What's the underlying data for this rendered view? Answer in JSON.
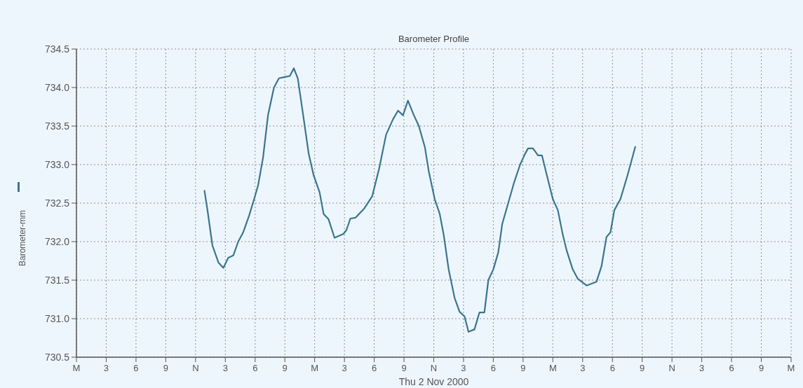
{
  "chart_data": {
    "type": "line",
    "title": "Barometer Profile",
    "xlabel": "Thu 2 Nov 2000",
    "ylabel": "Barometer-mm",
    "xlim": [
      "2000-11-01T00:00",
      "2000-11-04T00:00"
    ],
    "xticks": [
      {
        "value": "2000-11-01T00:00",
        "label": "M"
      },
      {
        "value": "2000-11-01T03:00",
        "label": "3"
      },
      {
        "value": "2000-11-01T06:00",
        "label": "6"
      },
      {
        "value": "2000-11-01T09:00",
        "label": "9"
      },
      {
        "value": "2000-11-01T12:00",
        "label": "N"
      },
      {
        "value": "2000-11-01T15:00",
        "label": "3"
      },
      {
        "value": "2000-11-01T18:00",
        "label": "6"
      },
      {
        "value": "2000-11-01T21:00",
        "label": "9"
      },
      {
        "value": "2000-11-02T00:00",
        "label": "M"
      },
      {
        "value": "2000-11-02T03:00",
        "label": "3"
      },
      {
        "value": "2000-11-02T06:00",
        "label": "6"
      },
      {
        "value": "2000-11-02T09:00",
        "label": "9"
      },
      {
        "value": "2000-11-02T12:00",
        "label": "N"
      },
      {
        "value": "2000-11-02T15:00",
        "label": "3"
      },
      {
        "value": "2000-11-02T18:00",
        "label": "6"
      },
      {
        "value": "2000-11-02T21:00",
        "label": "9"
      },
      {
        "value": "2000-11-03T00:00",
        "label": "M"
      },
      {
        "value": "2000-11-03T03:00",
        "label": "3"
      },
      {
        "value": "2000-11-03T06:00",
        "label": "6"
      },
      {
        "value": "2000-11-03T09:00",
        "label": "9"
      },
      {
        "value": "2000-11-03T12:00",
        "label": "N"
      },
      {
        "value": "2000-11-03T15:00",
        "label": "3"
      },
      {
        "value": "2000-11-03T18:00",
        "label": "6"
      },
      {
        "value": "2000-11-03T21:00",
        "label": "9"
      },
      {
        "value": "2000-11-04T00:00",
        "label": "M"
      }
    ],
    "ylim": [
      730.5,
      734.5
    ],
    "yticks": [
      {
        "value": 730.5,
        "label": "730.5"
      },
      {
        "value": 731,
        "label": "731.0"
      },
      {
        "value": 731.5,
        "label": "731.5"
      },
      {
        "value": 732,
        "label": "732.0"
      },
      {
        "value": 732.5,
        "label": "732.5"
      },
      {
        "value": 733,
        "label": "733.0"
      },
      {
        "value": 733.5,
        "label": "733.5"
      },
      {
        "value": 734,
        "label": "734.0"
      },
      {
        "value": 734.5,
        "label": "734.5"
      }
    ],
    "grid": true,
    "series": [
      {
        "color": "#3a7590",
        "x": [
          "2000-11-01T12:54",
          "2000-11-01T13:12",
          "2000-11-01T13:42",
          "2000-11-01T14:18",
          "2000-11-01T14:48",
          "2000-11-01T15:18",
          "2000-11-01T15:48",
          "2000-11-01T16:18",
          "2000-11-01T16:48",
          "2000-11-01T17:24",
          "2000-11-01T17:54",
          "2000-11-01T18:18",
          "2000-11-01T18:48",
          "2000-11-01T19:18",
          "2000-11-01T19:54",
          "2000-11-01T20:24",
          "2000-11-01T21:06",
          "2000-11-01T21:30",
          "2000-11-01T21:54",
          "2000-11-01T22:18",
          "2000-11-01T22:48",
          "2000-11-01T23:24",
          "2000-11-01T23:54",
          "2000-11-02T00:30",
          "2000-11-02T00:54",
          "2000-11-02T01:24",
          "2000-11-02T02:00",
          "2000-11-02T02:54",
          "2000-11-02T03:12",
          "2000-11-02T03:36",
          "2000-11-02T04:06",
          "2000-11-02T05:00",
          "2000-11-02T05:48",
          "2000-11-02T06:30",
          "2000-11-02T07:12",
          "2000-11-02T07:54",
          "2000-11-02T08:24",
          "2000-11-02T08:54",
          "2000-11-02T09:24",
          "2000-11-02T10:00",
          "2000-11-02T10:30",
          "2000-11-02T11:06",
          "2000-11-02T11:30",
          "2000-11-02T12:06",
          "2000-11-02T12:36",
          "2000-11-02T13:00",
          "2000-11-02T13:30",
          "2000-11-02T14:06",
          "2000-11-02T14:36",
          "2000-11-02T15:06",
          "2000-11-02T15:30",
          "2000-11-02T16:06",
          "2000-11-02T16:36",
          "2000-11-02T17:06",
          "2000-11-02T17:30",
          "2000-11-02T18:00",
          "2000-11-02T18:30",
          "2000-11-02T18:54",
          "2000-11-02T19:30",
          "2000-11-02T20:06",
          "2000-11-02T20:42",
          "2000-11-02T21:12",
          "2000-11-02T21:30",
          "2000-11-02T22:00",
          "2000-11-02T22:30",
          "2000-11-02T22:54",
          "2000-11-02T23:24",
          "2000-11-03T00:00",
          "2000-11-03T00:30",
          "2000-11-03T01:00",
          "2000-11-03T01:24",
          "2000-11-03T02:00",
          "2000-11-03T02:30",
          "2000-11-03T03:24",
          "2000-11-03T04:24",
          "2000-11-03T04:54",
          "2000-11-03T05:24",
          "2000-11-03T05:48",
          "2000-11-03T06:12",
          "2000-11-03T06:48",
          "2000-11-03T07:30",
          "2000-11-03T08:18"
        ],
        "values": [
          732.66,
          732.41,
          731.95,
          731.73,
          731.66,
          731.79,
          731.82,
          732.0,
          732.12,
          732.34,
          732.55,
          732.73,
          733.09,
          733.64,
          734.0,
          734.12,
          734.14,
          734.15,
          734.25,
          734.12,
          733.68,
          733.14,
          732.86,
          732.64,
          732.36,
          732.29,
          732.05,
          732.1,
          732.15,
          732.3,
          732.31,
          732.43,
          732.59,
          732.95,
          733.39,
          733.59,
          733.7,
          733.64,
          733.83,
          733.64,
          733.5,
          733.23,
          732.91,
          732.55,
          732.36,
          732.09,
          731.64,
          731.27,
          731.09,
          731.03,
          730.83,
          730.86,
          731.08,
          731.08,
          731.5,
          731.64,
          731.86,
          732.23,
          732.5,
          732.77,
          733.0,
          733.14,
          733.21,
          733.21,
          733.12,
          733.12,
          732.86,
          732.55,
          732.41,
          732.09,
          731.88,
          731.64,
          731.52,
          731.43,
          731.48,
          731.68,
          732.06,
          732.12,
          732.41,
          732.55,
          732.85,
          733.23
        ]
      }
    ]
  }
}
